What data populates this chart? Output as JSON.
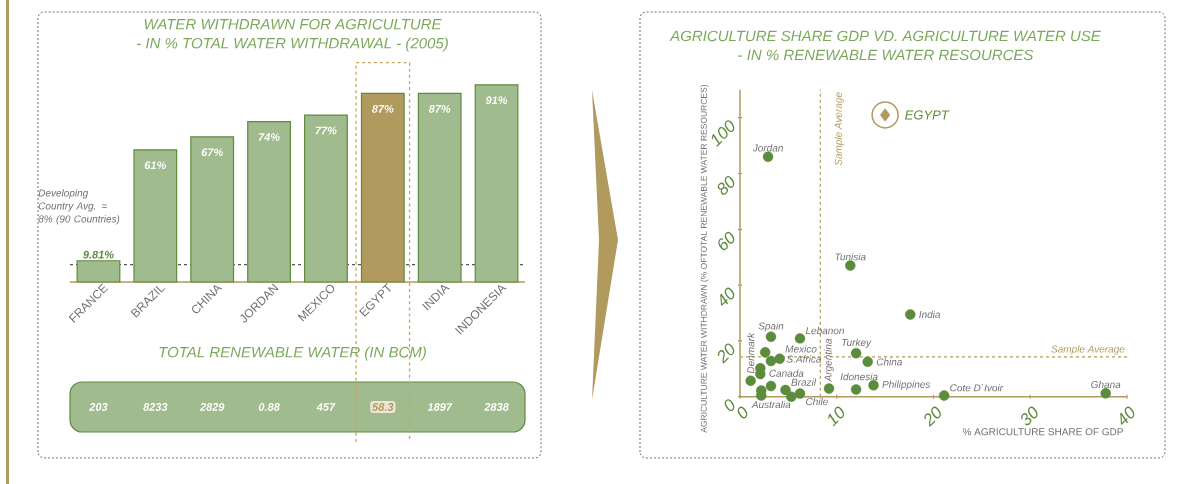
{
  "chart_data": [
    {
      "type": "bar",
      "title": "WATER WITHDRAWN FOR AGRICULTURE",
      "subtitle": "- IN % TOTAL WATER WITHDRAWAL - (2005)",
      "categories": [
        "FRANCE",
        "BRAZIL",
        "CHINA",
        "JORDAN",
        "MEXICO",
        "EGYPT",
        "INDIA",
        "INDONESIA"
      ],
      "values": [
        9.81,
        61,
        67,
        74,
        77,
        87,
        87,
        91
      ],
      "value_labels": [
        "9.81%",
        "61%",
        "67%",
        "74%",
        "77%",
        "87%",
        "87%",
        "91%"
      ],
      "colors": [
        "#a0bb8e",
        "#a0bb8e",
        "#a0bb8e",
        "#a0bb8e",
        "#a0bb8e",
        "#b09a5e",
        "#a0bb8e",
        "#a0bb8e"
      ],
      "tick_labels": "x",
      "ref_lines": [
        {
          "axis": "y",
          "value": 8,
          "label": "Developing Country Avg. = 8% (90 Countries)",
          "color": "#555555",
          "line_style": "dashed"
        }
      ]
    },
    {
      "type": "other",
      "title": "TOTAL RENEWABLE WATER (IN BCM)",
      "values": [
        203,
        8233,
        2829,
        0.88,
        457,
        58.3,
        1897,
        2838
      ],
      "colors": [
        "#ffffff",
        "#ffffff",
        "#ffffff",
        "#ffffff",
        "#ffffff",
        "#b09a5e",
        "#ffffff",
        "#ffffff"
      ],
      "data_labels": true
    },
    {
      "type": "scatter",
      "title": "AGRICULTURE SHARE GDP VD. AGRICULTURE WATER USE",
      "subtitle": "- IN % RENEWABLE WATER RESOURCES",
      "xlabel": "% AGRICULTURE SHARE OF GDP",
      "ylabel": "AGRICULTURE WATER WITHDRAWN (% OFTOTAL RENEWABLE WATER RESOURCES)",
      "series": [
        {
          "color": "#5b8c3c",
          "marker": "circle",
          "x": [
            2.9,
            11.4,
            17.6,
            3.2,
            6.2,
            4.1,
            2.6,
            3.2,
            2.1,
            2.1,
            1.1,
            3.2,
            2.2,
            2.2,
            4.7,
            5.3,
            6.2,
            9.2,
            12,
            12,
            13.2,
            13.8,
            21.1,
            37.8
          ],
          "values": [
            86,
            47,
            29.5,
            21.5,
            20.9,
            13.6,
            15.9,
            12.8,
            10.2,
            8.1,
            5.7,
            3.8,
            2.2,
            0.4,
            2.4,
            0,
            1.1,
            2.9,
            2.6,
            15.6,
            12.5,
            4.1,
            0.4,
            1.2
          ]
        },
        {
          "name": "EGYPT",
          "color": "#b09a5e",
          "marker": "diamond",
          "x": [
            15
          ],
          "values": [
            101
          ]
        }
      ],
      "xlim": [
        0,
        40
      ],
      "ylim": [
        0,
        110
      ],
      "xticks": [
        0,
        10,
        20,
        30,
        40
      ],
      "yticks": [
        0,
        20,
        40,
        60,
        80,
        100
      ],
      "ref_lines": [
        {
          "axis": "x",
          "value": 8.3,
          "label": "Sample Average",
          "color": "#b09a5e",
          "line_style": "dashed"
        },
        {
          "axis": "y",
          "value": 14.3,
          "label": "Sample Average",
          "color": "#b09a5e",
          "line_style": "dashed"
        }
      ],
      "annotations": [
        {
          "text": "Jordan",
          "x": 2.9,
          "y": 86
        },
        {
          "text": "Tunisia",
          "x": 11.4,
          "y": 47
        },
        {
          "text": "India",
          "x": 17.6,
          "y": 29.5
        },
        {
          "text": "Spain",
          "x": 3.2,
          "y": 21.5
        },
        {
          "text": "Lebanon",
          "x": 6.2,
          "y": 20.9
        },
        {
          "text": "Mexico",
          "x": 4.1,
          "y": 13.6
        },
        {
          "text": "Denmark",
          "x": 1.1,
          "y": 5.7
        },
        {
          "text": "S.Africa",
          "x": 3.2,
          "y": 12.8
        },
        {
          "text": "Canada",
          "x": 2.1,
          "y": 10.2
        },
        {
          "text": "Brazil",
          "x": 4.7,
          "y": 2.4
        },
        {
          "text": "Australia",
          "x": 2.2,
          "y": 0.4
        },
        {
          "text": "Chile",
          "x": 6.2,
          "y": 1.1
        },
        {
          "text": "Argentina",
          "x": 9.2,
          "y": 2.9
        },
        {
          "text": "Idonesia",
          "x": 12,
          "y": 2.6
        },
        {
          "text": "Turkey",
          "x": 12,
          "y": 15.6
        },
        {
          "text": "China",
          "x": 13.2,
          "y": 12.5
        },
        {
          "text": "Philippines",
          "x": 13.8,
          "y": 4.1
        },
        {
          "text": "Cote D`Ivoir",
          "x": 21.1,
          "y": 0.4
        },
        {
          "text": "Ghana",
          "x": 37.8,
          "y": 1.2
        }
      ]
    }
  ]
}
